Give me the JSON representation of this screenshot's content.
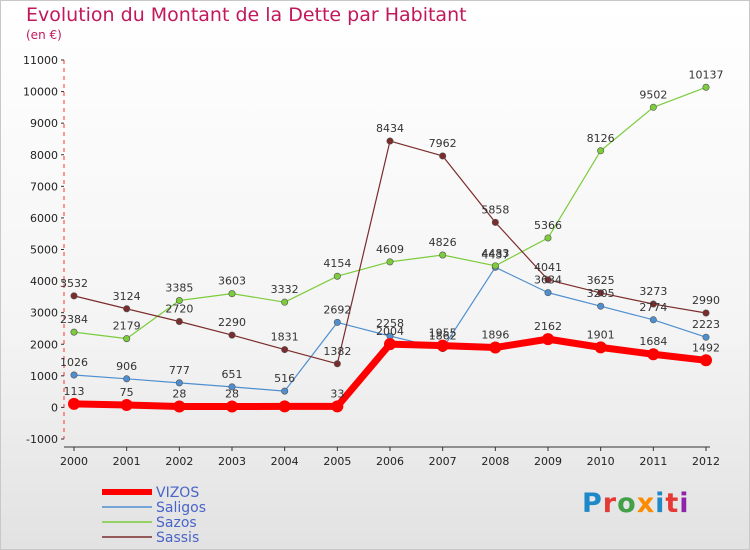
{
  "title": "Evolution du Montant de la Dette par Habitant",
  "unit_label": "(en €)",
  "logo_text": "Proxiti",
  "chart_data": {
    "type": "line",
    "title": "Evolution du Montant de la Dette par Habitant",
    "ylabel": "(en €)",
    "x": [
      "2000",
      "2001",
      "2002",
      "2003",
      "2004",
      "2005",
      "2006",
      "2007",
      "2008",
      "2009",
      "2010",
      "2011",
      "2012"
    ],
    "ylim": [
      -1000,
      11000
    ],
    "yticks": [
      "-1000",
      "0",
      "1000",
      "2000",
      "3000",
      "4000",
      "5000",
      "6000",
      "7000",
      "8000",
      "9000",
      "10000",
      "11000"
    ],
    "grid": false,
    "legend": "bottom-left",
    "series": [
      {
        "name": "VIZOS",
        "color": "#ff0000",
        "values": [
          113,
          75,
          28,
          28,
          33,
          33,
          2004,
          1955,
          1896,
          2162,
          1901,
          1684,
          1492
        ],
        "labels": [
          "113",
          "75",
          "28",
          "28",
          "",
          "33",
          "2004",
          "1955",
          "1896",
          "2162",
          "1901",
          "1684",
          "1492"
        ]
      },
      {
        "name": "Saligos",
        "color": "#4f8fcf",
        "values": [
          1026,
          906,
          777,
          651,
          516,
          2692,
          2258,
          1862,
          4437,
          3634,
          3205,
          2774,
          2223
        ],
        "labels": [
          "1026",
          "906",
          "777",
          "651",
          "516",
          "2692",
          "2258",
          "1862",
          "4437",
          "3634",
          "3205",
          "2774",
          "2223"
        ]
      },
      {
        "name": "Sazos",
        "color": "#7ccc3c",
        "values": [
          2384,
          2179,
          3385,
          3603,
          3332,
          4154,
          4609,
          4826,
          4483,
          5366,
          8126,
          9502,
          10137
        ],
        "labels": [
          "2384",
          "2179",
          "3385",
          "3603",
          "3332",
          "4154",
          "4609",
          "4826",
          "4483",
          "5366",
          "8126",
          "9502",
          "10137"
        ]
      },
      {
        "name": "Sassis",
        "color": "#7b2c2c",
        "values": [
          3532,
          3124,
          2720,
          2290,
          1831,
          1382,
          8434,
          7962,
          5858,
          4041,
          3625,
          3273,
          2990
        ],
        "labels": [
          "3532",
          "3124",
          "2720",
          "2290",
          "1831",
          "1382",
          "8434",
          "7962",
          "5858",
          "4041",
          "3625",
          "3273",
          "2990"
        ]
      }
    ]
  }
}
